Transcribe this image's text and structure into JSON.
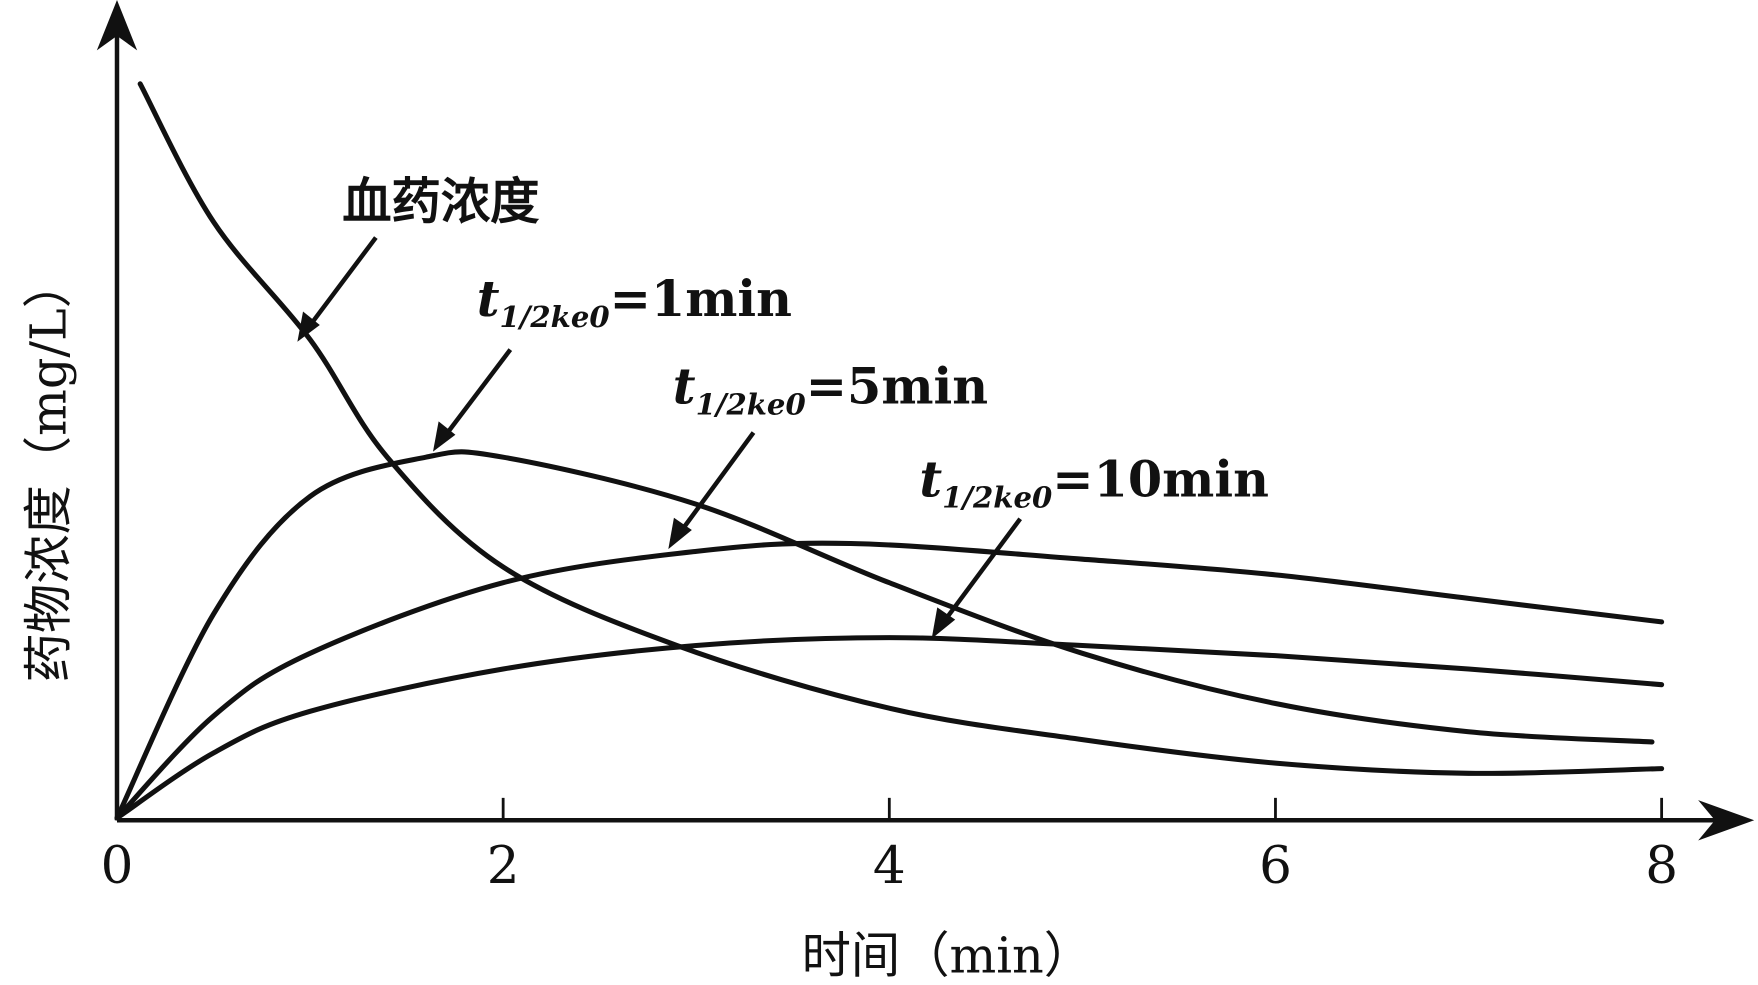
{
  "chart_data": {
    "type": "line",
    "title": "",
    "xlabel": "时间（min）",
    "ylabel": "药物浓度（mg/L）",
    "xlim": [
      0,
      8.2
    ],
    "ylim": [
      0,
      10
    ],
    "xticks": [
      0,
      2,
      4,
      6,
      8
    ],
    "y_ticks_shown": false,
    "grid": false,
    "series": [
      {
        "name": "血药浓度",
        "x": [
          0.12,
          0.5,
          1,
          1.4,
          2,
          2.9,
          4,
          5,
          6,
          7,
          8
        ],
        "y": [
          9.36,
          7.6,
          6.1,
          4.6,
          3.2,
          2.2,
          1.4,
          1.0,
          0.7,
          0.57,
          0.63
        ]
      },
      {
        "name": "t1/2ke0=1min",
        "x": [
          0,
          0.5,
          1,
          1.6,
          2,
          3,
          4,
          5,
          6,
          7,
          7.95
        ],
        "y": [
          0,
          2.6,
          4.1,
          4.6,
          4.6,
          4.0,
          3.0,
          2.1,
          1.46,
          1.1,
          0.97
        ]
      },
      {
        "name": "t1/2ke0=5min",
        "x": [
          0,
          0.5,
          1,
          2,
          3,
          3.8,
          5,
          6,
          7,
          8
        ],
        "y": [
          0,
          1.3,
          2.1,
          3.0,
          3.4,
          3.5,
          3.3,
          3.1,
          2.8,
          2.5
        ]
      },
      {
        "name": "t1/2ke0=10min",
        "x": [
          0,
          0.5,
          1,
          2,
          3,
          4,
          5,
          6,
          7,
          8
        ],
        "y": [
          0,
          0.83,
          1.36,
          1.9,
          2.2,
          2.3,
          2.2,
          2.07,
          1.9,
          1.7
        ]
      }
    ],
    "annotations": [
      {
        "text": "血药浓度"
      },
      {
        "t": "t",
        "sub": "1/2ke0",
        "rest": "=1min"
      },
      {
        "t": "t",
        "sub": "1/2ke0",
        "rest": "=5min"
      },
      {
        "t": "t",
        "sub": "1/2ke0",
        "rest": "=10min"
      }
    ]
  }
}
